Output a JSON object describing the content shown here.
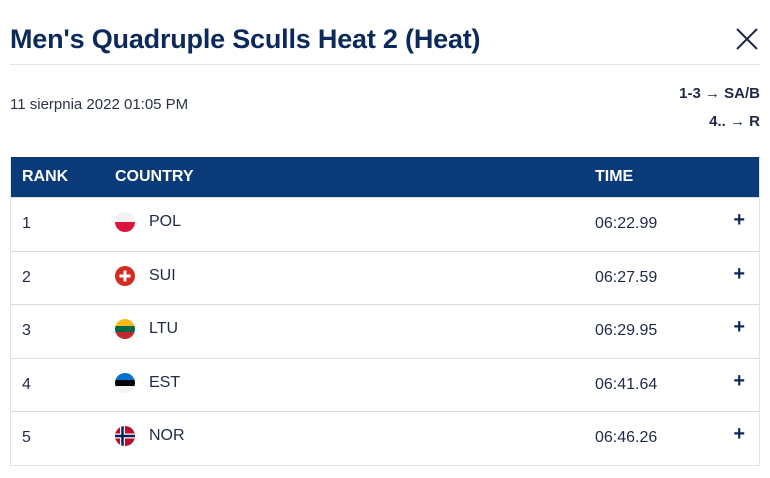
{
  "header": {
    "title": "Men's Quadruple Sculls Heat 2 (Heat)"
  },
  "meta": {
    "date": "11 sierpnia 2022 01:05 PM",
    "progression": [
      "1-3 → SA/B",
      "4.. → R"
    ]
  },
  "table": {
    "columns": {
      "rank": "RANK",
      "country": "COUNTRY",
      "time": "TIME"
    },
    "rows": [
      {
        "rank": "1",
        "country": "POL",
        "time": "06:22.99",
        "flag_icon": "poland-flag-icon",
        "expand": "+"
      },
      {
        "rank": "2",
        "country": "SUI",
        "time": "06:27.59",
        "flag_icon": "switzerland-flag-icon",
        "expand": "+"
      },
      {
        "rank": "3",
        "country": "LTU",
        "time": "06:29.95",
        "flag_icon": "lithuania-flag-icon",
        "expand": "+"
      },
      {
        "rank": "4",
        "country": "EST",
        "time": "06:41.64",
        "flag_icon": "estonia-flag-icon",
        "expand": "+"
      },
      {
        "rank": "5",
        "country": "NOR",
        "time": "06:46.26",
        "flag_icon": "norway-flag-icon",
        "expand": "+"
      }
    ]
  },
  "colors": {
    "header_bg": "#0b3a78",
    "title": "#0b2a5b"
  }
}
